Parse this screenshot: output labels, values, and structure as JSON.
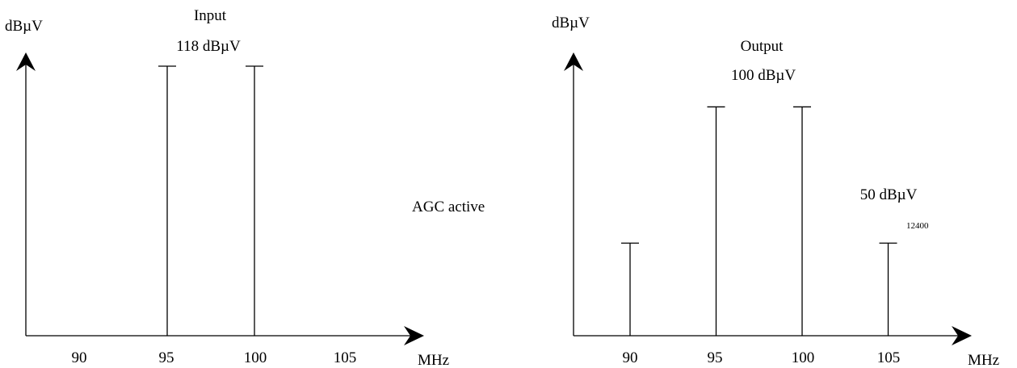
{
  "middle_label": "AGC active",
  "panels": [
    {
      "y_unit": "dBµV",
      "x_unit": "MHz",
      "title_lines": [
        "Input",
        "118 dBµV"
      ],
      "x_ticks": [
        "90",
        "95",
        "100",
        "105"
      ],
      "level_labels": [],
      "bars": [
        {
          "freq_mhz": 95,
          "level_dbuv": 118
        },
        {
          "freq_mhz": 100,
          "level_dbuv": 118
        }
      ]
    },
    {
      "y_unit": "dBµV",
      "x_unit": "MHz",
      "title_lines": [
        "Output",
        "100 dBµV"
      ],
      "x_ticks": [
        "90",
        "95",
        "100",
        "105"
      ],
      "level_labels": [
        "50 dBµV"
      ],
      "bars": [
        {
          "freq_mhz": 90,
          "level_dbuv": 50
        },
        {
          "freq_mhz": 95,
          "level_dbuv": 100
        },
        {
          "freq_mhz": 100,
          "level_dbuv": 100
        },
        {
          "freq_mhz": 105,
          "level_dbuv": 50
        }
      ]
    }
  ],
  "annotation": "12400"
}
